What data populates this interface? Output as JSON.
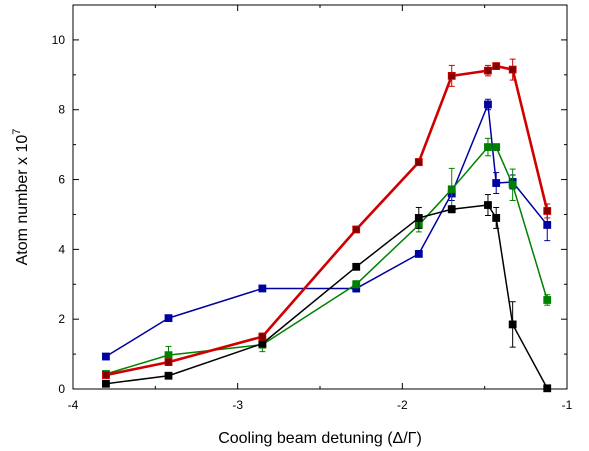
{
  "chart_data": {
    "type": "line",
    "title": "",
    "xlabel": "Cooling beam detuning (Δ/Γ)",
    "ylabel_main": "Atom number x 10",
    "ylabel_exp": "7",
    "xlim": [
      -4.0,
      -1.0
    ],
    "ylim": [
      0,
      11
    ],
    "xticks": [
      -4,
      -3,
      -2,
      -1
    ],
    "xtick_labels": [
      "-4",
      "-3",
      "-2",
      "-1"
    ],
    "yticks": [
      0,
      2,
      4,
      6,
      8,
      10
    ],
    "ytick_labels": [
      "0",
      "2",
      "4",
      "6",
      "8",
      "10"
    ],
    "minor_x_step": 0.5,
    "minor_y_step": 1,
    "grid": false,
    "legend": "none",
    "series": [
      {
        "color": "#0000a0",
        "marker": "square",
        "x": [
          -3.8,
          -3.42,
          -2.85,
          -2.28,
          -1.9,
          -1.7,
          -1.48,
          -1.43,
          -1.33,
          -1.12
        ],
        "y": [
          0.93,
          2.03,
          2.88,
          2.88,
          3.87,
          5.6,
          8.15,
          5.9,
          5.93,
          4.7
        ],
        "err": [
          0.05,
          0.07,
          0.06,
          0.1,
          0.05,
          0.2,
          0.15,
          0.3,
          0.2,
          0.45
        ]
      },
      {
        "color": "#008000",
        "marker": "square",
        "x": [
          -3.8,
          -3.42,
          -2.85,
          -2.28,
          -1.9,
          -1.7,
          -1.48,
          -1.43,
          -1.33,
          -1.12
        ],
        "y": [
          0.43,
          0.97,
          1.27,
          3.0,
          4.7,
          5.72,
          6.93,
          6.93,
          5.85,
          2.55
        ],
        "err": [
          0.05,
          0.25,
          0.2,
          0.1,
          0.2,
          0.6,
          0.25,
          0.05,
          0.45,
          0.15
        ]
      },
      {
        "color": "#000000",
        "marker": "square",
        "x": [
          -3.8,
          -3.42,
          -2.85,
          -2.28,
          -1.9,
          -1.7,
          -1.48,
          -1.43,
          -1.33,
          -1.12
        ],
        "y": [
          0.15,
          0.38,
          1.3,
          3.5,
          4.9,
          5.15,
          5.27,
          4.9,
          1.85,
          0.02
        ],
        "err": [
          0.05,
          0.05,
          0.05,
          0.05,
          0.3,
          0.1,
          0.3,
          0.3,
          0.65,
          0.05
        ]
      },
      {
        "color": "#d00000",
        "marker": "square",
        "x": [
          -3.8,
          -3.42,
          -2.85,
          -2.28,
          -1.9,
          -1.7,
          -1.48,
          -1.43,
          -1.33,
          -1.12
        ],
        "y": [
          0.4,
          0.77,
          1.5,
          4.57,
          6.5,
          8.97,
          9.12,
          9.25,
          9.15,
          5.1
        ],
        "err": [
          0.05,
          0.05,
          0.1,
          0.05,
          0.1,
          0.3,
          0.15,
          0.05,
          0.3,
          0.2
        ],
        "fill": "#800000",
        "line_width": 2.6
      }
    ]
  }
}
